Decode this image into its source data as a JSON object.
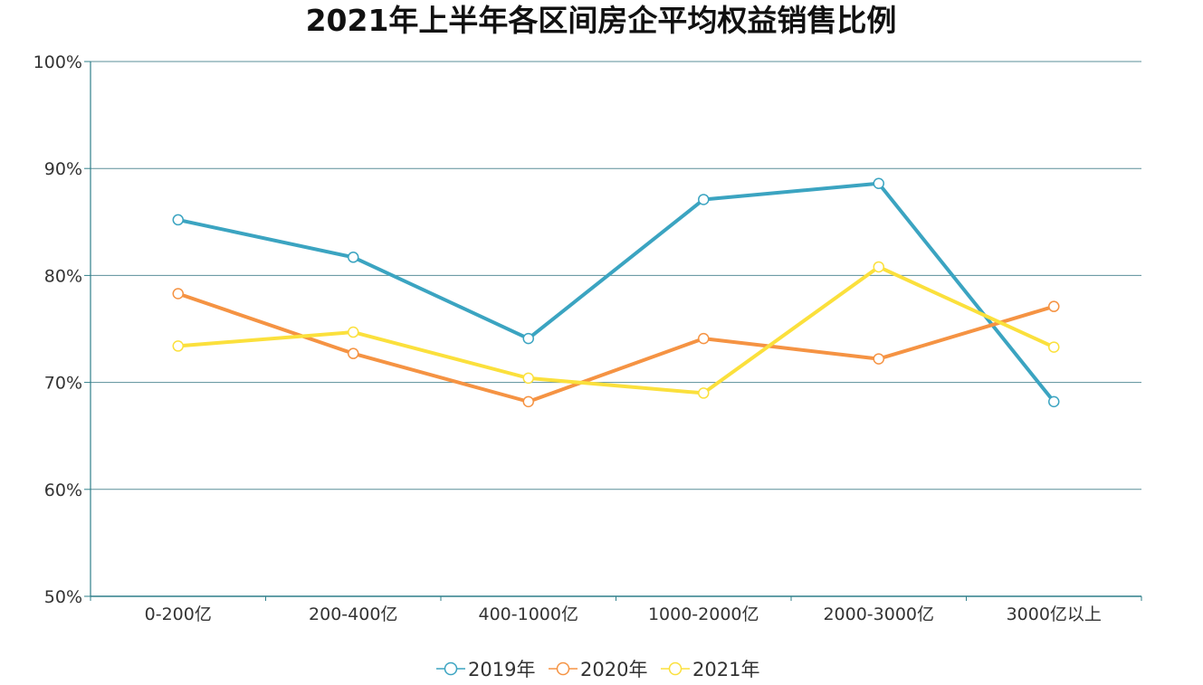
{
  "chart_data": {
    "type": "line",
    "title": "2021年上半年各区间房企平均权益销售比例",
    "xlabel": "",
    "ylabel": "",
    "categories": [
      "0-200亿",
      "200-400亿",
      "400-1000亿",
      "1000-2000亿",
      "2000-3000亿",
      "3000亿以上"
    ],
    "y_ticks": [
      "50%",
      "60%",
      "70%",
      "80%",
      "90%",
      "100%"
    ],
    "ylim": [
      50,
      100
    ],
    "unit": "%",
    "grid": true,
    "legend_position": "bottom-center",
    "series": [
      {
        "name": "2019年",
        "color": "#3ba4c1",
        "values": [
          85.2,
          81.7,
          74.1,
          87.1,
          88.6,
          68.2
        ]
      },
      {
        "name": "2020年",
        "color": "#f59343",
        "values": [
          78.3,
          72.7,
          68.2,
          74.1,
          72.2,
          77.1
        ]
      },
      {
        "name": "2021年",
        "color": "#fbe03c",
        "values": [
          73.4,
          74.7,
          70.4,
          69.0,
          80.8,
          73.3
        ]
      }
    ],
    "axis_color": "#2f7f8a",
    "grid_color": "#5a8f99"
  }
}
